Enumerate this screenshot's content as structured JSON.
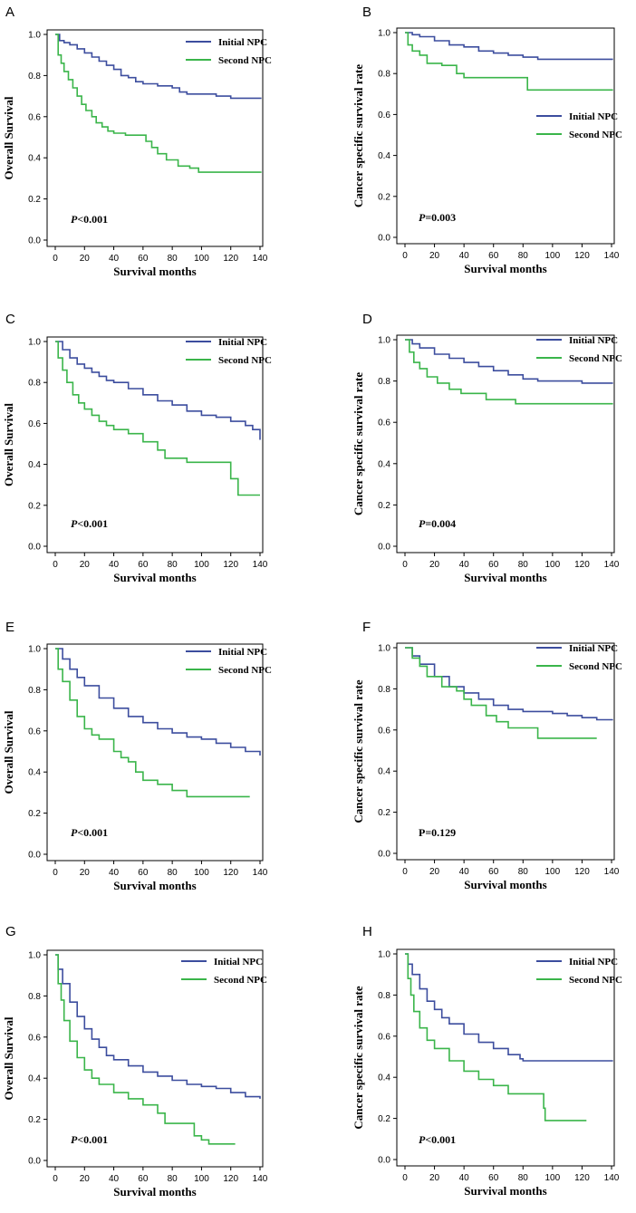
{
  "colors": {
    "initial": "#3c4d9e",
    "second": "#3ab54a",
    "axis": "#000000"
  },
  "chart_data": [
    {
      "panel": "A",
      "type": "line",
      "ylabel": "Overall Survival",
      "xlabel": "Survival months",
      "xlim": [
        0,
        145
      ],
      "ylim": [
        0,
        1
      ],
      "xticks": [
        "0",
        "20",
        "40",
        "60",
        "80",
        "100",
        "120",
        "140"
      ],
      "yticks": [
        "0.0",
        "0.2",
        "0.4",
        "0.6",
        "0.8",
        "1.0"
      ],
      "legend": [
        "Initial NPC",
        "Second NPC"
      ],
      "legend_position": "top-right",
      "p_prefix": "P",
      "p_value": "<0.001",
      "series": [
        {
          "name": "Initial NPC",
          "x": [
            0,
            3,
            6,
            10,
            15,
            20,
            25,
            30,
            35,
            40,
            45,
            50,
            55,
            60,
            65,
            70,
            75,
            80,
            85,
            90,
            100,
            110,
            120,
            130,
            141
          ],
          "y": [
            1.0,
            0.97,
            0.96,
            0.95,
            0.93,
            0.91,
            0.89,
            0.87,
            0.85,
            0.83,
            0.8,
            0.79,
            0.77,
            0.76,
            0.76,
            0.75,
            0.75,
            0.74,
            0.72,
            0.71,
            0.71,
            0.7,
            0.69,
            0.69,
            0.69
          ]
        },
        {
          "name": "Second NPC",
          "x": [
            0,
            2,
            4,
            6,
            9,
            12,
            15,
            18,
            21,
            25,
            28,
            32,
            36,
            40,
            48,
            56,
            62,
            66,
            70,
            76,
            84,
            92,
            98,
            110,
            141
          ],
          "y": [
            1.0,
            0.9,
            0.86,
            0.82,
            0.78,
            0.74,
            0.7,
            0.66,
            0.63,
            0.6,
            0.57,
            0.55,
            0.53,
            0.52,
            0.51,
            0.51,
            0.48,
            0.45,
            0.42,
            0.39,
            0.36,
            0.35,
            0.33,
            0.33,
            0.33
          ]
        }
      ]
    },
    {
      "panel": "B",
      "type": "line",
      "ylabel": "Cancer specific survival rate",
      "xlabel": "Survival months",
      "xlim": [
        0,
        145
      ],
      "ylim": [
        0,
        1
      ],
      "xticks": [
        "0",
        "20",
        "40",
        "60",
        "80",
        "100",
        "120",
        "140"
      ],
      "yticks": [
        "0.0",
        "0.2",
        "0.4",
        "0.6",
        "0.8",
        "1.0"
      ],
      "legend": [
        "Initial NPC",
        "Second NPC"
      ],
      "legend_position": "center-right",
      "p_prefix": "P",
      "p_value": "=0.003",
      "series": [
        {
          "name": "Initial NPC",
          "x": [
            0,
            5,
            10,
            20,
            30,
            40,
            50,
            60,
            70,
            80,
            90,
            100,
            141
          ],
          "y": [
            1.0,
            0.99,
            0.98,
            0.96,
            0.94,
            0.93,
            0.91,
            0.9,
            0.89,
            0.88,
            0.87,
            0.87,
            0.87
          ]
        },
        {
          "name": "Second NPC",
          "x": [
            0,
            2,
            5,
            10,
            15,
            25,
            35,
            40,
            60,
            83,
            100,
            141
          ],
          "y": [
            1.0,
            0.94,
            0.91,
            0.89,
            0.85,
            0.84,
            0.8,
            0.78,
            0.78,
            0.72,
            0.72,
            0.72
          ]
        }
      ]
    },
    {
      "panel": "C",
      "type": "line",
      "ylabel": "Overall Survival",
      "xlabel": "Survival months",
      "xlim": [
        0,
        145
      ],
      "ylim": [
        0,
        1
      ],
      "xticks": [
        "0",
        "20",
        "40",
        "60",
        "80",
        "100",
        "120",
        "140"
      ],
      "yticks": [
        "0.0",
        "0.2",
        "0.4",
        "0.6",
        "0.8",
        "1.0"
      ],
      "legend": [
        "Initial NPC",
        "Second NPC"
      ],
      "legend_position": "top-right",
      "p_prefix": "P",
      "p_value": "<0.001",
      "series": [
        {
          "name": "Initial NPC",
          "x": [
            0,
            5,
            10,
            15,
            20,
            25,
            30,
            35,
            40,
            50,
            60,
            70,
            80,
            90,
            100,
            110,
            120,
            130,
            135,
            140
          ],
          "y": [
            1.0,
            0.96,
            0.92,
            0.89,
            0.87,
            0.85,
            0.83,
            0.81,
            0.8,
            0.77,
            0.74,
            0.71,
            0.69,
            0.66,
            0.64,
            0.63,
            0.61,
            0.59,
            0.57,
            0.52
          ]
        },
        {
          "name": "Second NPC",
          "x": [
            0,
            2,
            5,
            8,
            12,
            16,
            20,
            25,
            30,
            35,
            40,
            50,
            60,
            70,
            75,
            90,
            100,
            118,
            120,
            125,
            140
          ],
          "y": [
            1.0,
            0.92,
            0.86,
            0.8,
            0.74,
            0.7,
            0.67,
            0.64,
            0.61,
            0.59,
            0.57,
            0.55,
            0.51,
            0.47,
            0.43,
            0.41,
            0.41,
            0.41,
            0.33,
            0.25,
            0.25
          ]
        }
      ]
    },
    {
      "panel": "D",
      "type": "line",
      "ylabel": "Cancer specific survival rate",
      "xlabel": "Survival months",
      "xlim": [
        0,
        145
      ],
      "ylim": [
        0,
        1
      ],
      "xticks": [
        "0",
        "20",
        "40",
        "60",
        "80",
        "100",
        "120",
        "140"
      ],
      "yticks": [
        "0.0",
        "0.2",
        "0.4",
        "0.6",
        "0.8",
        "1.0"
      ],
      "legend": [
        "Initial NPC",
        "Second NPC"
      ],
      "legend_position": "top-right",
      "p_prefix": "P",
      "p_value": "=0.004",
      "series": [
        {
          "name": "Initial NPC",
          "x": [
            0,
            5,
            10,
            20,
            30,
            40,
            50,
            60,
            70,
            80,
            90,
            100,
            120,
            141
          ],
          "y": [
            1.0,
            0.98,
            0.96,
            0.93,
            0.91,
            0.89,
            0.87,
            0.85,
            0.83,
            0.81,
            0.8,
            0.8,
            0.79,
            0.79
          ]
        },
        {
          "name": "Second NPC",
          "x": [
            0,
            3,
            6,
            10,
            15,
            22,
            30,
            38,
            55,
            75,
            100,
            141
          ],
          "y": [
            1.0,
            0.94,
            0.89,
            0.86,
            0.82,
            0.79,
            0.76,
            0.74,
            0.71,
            0.69,
            0.69,
            0.69
          ]
        }
      ]
    },
    {
      "panel": "E",
      "type": "line",
      "ylabel": "Overall Survival",
      "xlabel": "Survival months",
      "xlim": [
        0,
        145
      ],
      "ylim": [
        0,
        1
      ],
      "xticks": [
        "0",
        "20",
        "40",
        "60",
        "80",
        "100",
        "120",
        "140"
      ],
      "yticks": [
        "0.0",
        "0.2",
        "0.4",
        "0.6",
        "0.8",
        "1.0"
      ],
      "legend": [
        "Initial NPC",
        "Second NPC"
      ],
      "legend_position": "top-right",
      "p_prefix": "P",
      "p_value": "<0.001",
      "series": [
        {
          "name": "Initial NPC",
          "x": [
            0,
            5,
            10,
            15,
            20,
            30,
            40,
            50,
            60,
            70,
            80,
            90,
            100,
            110,
            120,
            130,
            140
          ],
          "y": [
            1.0,
            0.95,
            0.9,
            0.86,
            0.82,
            0.76,
            0.71,
            0.67,
            0.64,
            0.61,
            0.59,
            0.57,
            0.56,
            0.54,
            0.52,
            0.5,
            0.48
          ]
        },
        {
          "name": "Second NPC",
          "x": [
            0,
            2,
            5,
            10,
            15,
            20,
            25,
            30,
            40,
            45,
            50,
            55,
            60,
            70,
            80,
            90,
            133
          ],
          "y": [
            1.0,
            0.9,
            0.84,
            0.75,
            0.67,
            0.61,
            0.58,
            0.56,
            0.5,
            0.47,
            0.45,
            0.4,
            0.36,
            0.34,
            0.31,
            0.28,
            0.28
          ]
        }
      ]
    },
    {
      "panel": "F",
      "type": "line",
      "ylabel": "Cancer specific survival rate",
      "xlabel": "Survival months",
      "xlim": [
        0,
        145
      ],
      "ylim": [
        0,
        1
      ],
      "xticks": [
        "0",
        "20",
        "40",
        "60",
        "80",
        "100",
        "120",
        "140"
      ],
      "yticks": [
        "0.0",
        "0.2",
        "0.4",
        "0.6",
        "0.8",
        "1.0"
      ],
      "legend": [
        "Initial NPC",
        "Second NPC"
      ],
      "legend_position": "top-right",
      "p_prefix": "",
      "p_value": "P=0.129",
      "series": [
        {
          "name": "Initial NPC",
          "x": [
            0,
            5,
            10,
            20,
            30,
            40,
            50,
            60,
            70,
            80,
            90,
            100,
            110,
            120,
            130,
            141
          ],
          "y": [
            1.0,
            0.96,
            0.92,
            0.86,
            0.81,
            0.78,
            0.75,
            0.72,
            0.7,
            0.69,
            0.69,
            0.68,
            0.67,
            0.66,
            0.65,
            0.65
          ]
        },
        {
          "name": "Second NPC",
          "x": [
            0,
            5,
            10,
            15,
            25,
            35,
            40,
            45,
            55,
            62,
            70,
            90,
            130
          ],
          "y": [
            1.0,
            0.95,
            0.91,
            0.86,
            0.81,
            0.79,
            0.75,
            0.72,
            0.67,
            0.64,
            0.61,
            0.56,
            0.56
          ]
        }
      ]
    },
    {
      "panel": "G",
      "type": "line",
      "ylabel": "Overall Survival",
      "xlabel": "Survival months",
      "xlim": [
        0,
        145
      ],
      "ylim": [
        0,
        1
      ],
      "xticks": [
        "0",
        "20",
        "40",
        "60",
        "80",
        "100",
        "120",
        "140"
      ],
      "yticks": [
        "0.0",
        "0.2",
        "0.4",
        "0.6",
        "0.8",
        "1.0"
      ],
      "legend": [
        "Initial NPC",
        "Second NPC"
      ],
      "legend_position": "top-right",
      "p_prefix": "P",
      "p_value": "<0.001",
      "series": [
        {
          "name": "Initial NPC",
          "x": [
            0,
            2,
            5,
            10,
            15,
            20,
            25,
            30,
            35,
            40,
            50,
            60,
            70,
            80,
            90,
            100,
            110,
            120,
            130,
            140
          ],
          "y": [
            1.0,
            0.93,
            0.86,
            0.77,
            0.7,
            0.64,
            0.59,
            0.55,
            0.51,
            0.49,
            0.46,
            0.43,
            0.41,
            0.39,
            0.37,
            0.36,
            0.35,
            0.33,
            0.31,
            0.3
          ]
        },
        {
          "name": "Second NPC",
          "x": [
            0,
            2,
            4,
            6,
            10,
            15,
            20,
            25,
            30,
            40,
            50,
            60,
            70,
            75,
            95,
            100,
            105,
            123
          ],
          "y": [
            1.0,
            0.86,
            0.78,
            0.68,
            0.58,
            0.5,
            0.44,
            0.4,
            0.37,
            0.33,
            0.3,
            0.27,
            0.23,
            0.18,
            0.12,
            0.1,
            0.08,
            0.08
          ]
        }
      ]
    },
    {
      "panel": "H",
      "type": "line",
      "ylabel": "Cancer specific survival rate",
      "xlabel": "Survival months",
      "xlim": [
        0,
        145
      ],
      "ylim": [
        0,
        1
      ],
      "xticks": [
        "0",
        "20",
        "40",
        "60",
        "80",
        "100",
        "120",
        "140"
      ],
      "yticks": [
        "0.0",
        "0.2",
        "0.4",
        "0.6",
        "0.8",
        "1.0"
      ],
      "legend": [
        "Initial NPC",
        "Second NPC"
      ],
      "legend_position": "top-right",
      "p_prefix": "P",
      "p_value": "<0.001",
      "series": [
        {
          "name": "Initial NPC",
          "x": [
            0,
            2,
            5,
            10,
            15,
            20,
            25,
            30,
            40,
            50,
            60,
            70,
            78,
            80,
            100,
            141
          ],
          "y": [
            1.0,
            0.95,
            0.9,
            0.83,
            0.77,
            0.73,
            0.69,
            0.66,
            0.61,
            0.57,
            0.54,
            0.51,
            0.49,
            0.48,
            0.48,
            0.48
          ]
        },
        {
          "name": "Second NPC",
          "x": [
            0,
            2,
            4,
            6,
            10,
            15,
            20,
            30,
            40,
            50,
            60,
            70,
            75,
            85,
            94,
            95,
            123
          ],
          "y": [
            1.0,
            0.88,
            0.8,
            0.72,
            0.64,
            0.58,
            0.54,
            0.48,
            0.43,
            0.39,
            0.36,
            0.32,
            0.32,
            0.32,
            0.25,
            0.19,
            0.19
          ]
        }
      ]
    }
  ]
}
